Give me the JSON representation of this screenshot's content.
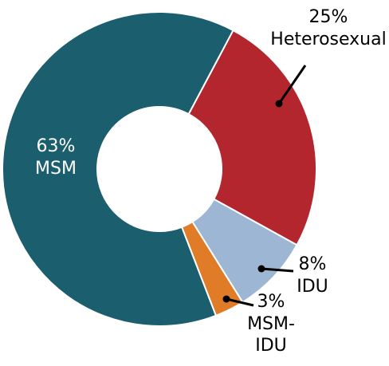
{
  "chart_data": {
    "type": "donut",
    "categories": [
      "Heterosexual",
      "IDU",
      "MSM-IDU",
      "MSM"
    ],
    "values": [
      25,
      8,
      3,
      63
    ],
    "value_labels": [
      "25%",
      "8%",
      "3%",
      "63%"
    ],
    "colors": [
      "#b3262e",
      "#9db6d3",
      "#e07b28",
      "#1b5e6e"
    ]
  }
}
